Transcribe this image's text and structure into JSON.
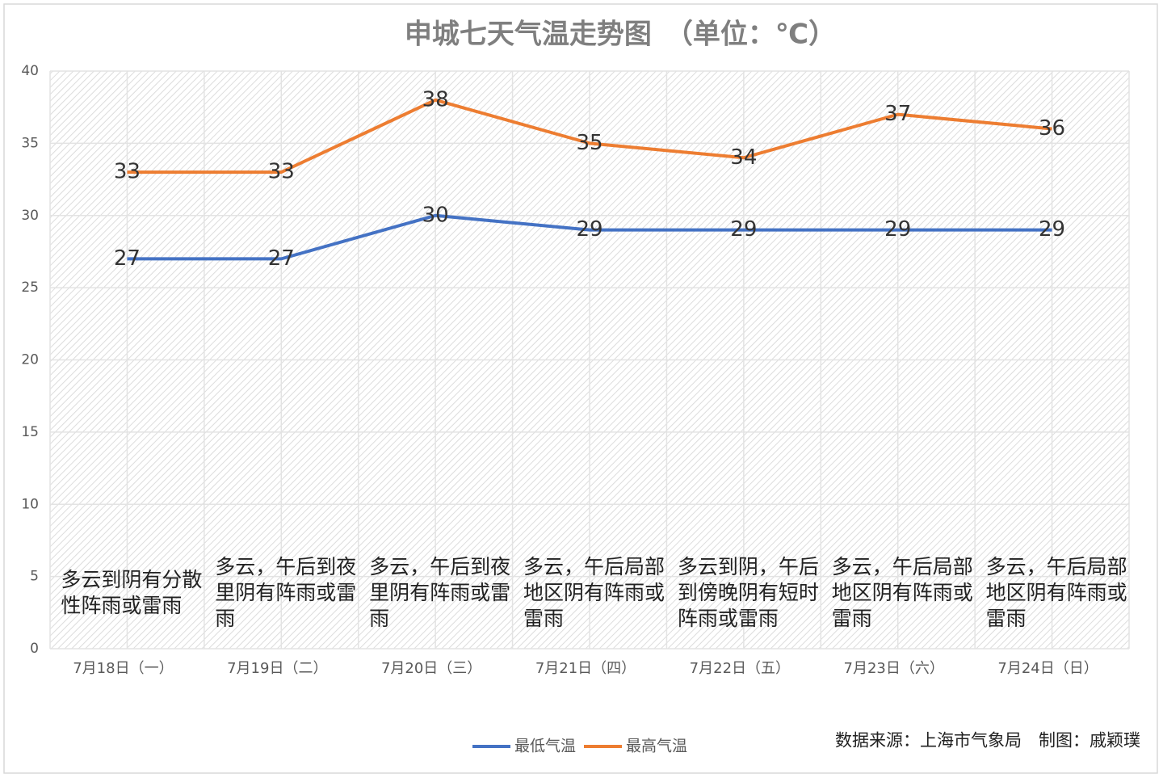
{
  "chart_data": {
    "type": "line",
    "title": "申城七天气温走势图　（单位：℃）",
    "categories": [
      "7月18日（一）",
      "7月19日（二）",
      "7月20日（三）",
      "7月21日（四）",
      "7月22日（五）",
      "7月23日（六）",
      "7月24日（日）"
    ],
    "series": [
      {
        "name": "最低气温",
        "color": "#4472c4",
        "values": [
          27,
          27,
          30,
          29,
          29,
          29,
          29
        ]
      },
      {
        "name": "最高气温",
        "color": "#ed7d31",
        "values": [
          33,
          33,
          38,
          35,
          34,
          37,
          36
        ]
      }
    ],
    "annotations": [
      "多云到阴有分散性阵雨或雷雨",
      "多云，午后到夜里阴有阵雨或雷雨",
      "多云，午后到夜里阴有阵雨或雷雨",
      "多云，午后局部地区阴有阵雨或雷雨",
      "多云到阴，午后到傍晚阴有短时阵雨或雷雨",
      "多云，午后局部地区阴有阵雨或雷雨",
      "多云，午后局部地区阴有阵雨或雷雨"
    ],
    "source": "数据来源：上海市气象局　制图：戚颖璞",
    "ylim": [
      0,
      40
    ],
    "yticks": [
      0,
      5,
      10,
      15,
      20,
      25,
      30,
      35,
      40
    ],
    "grid": true,
    "legend": "bottom"
  }
}
